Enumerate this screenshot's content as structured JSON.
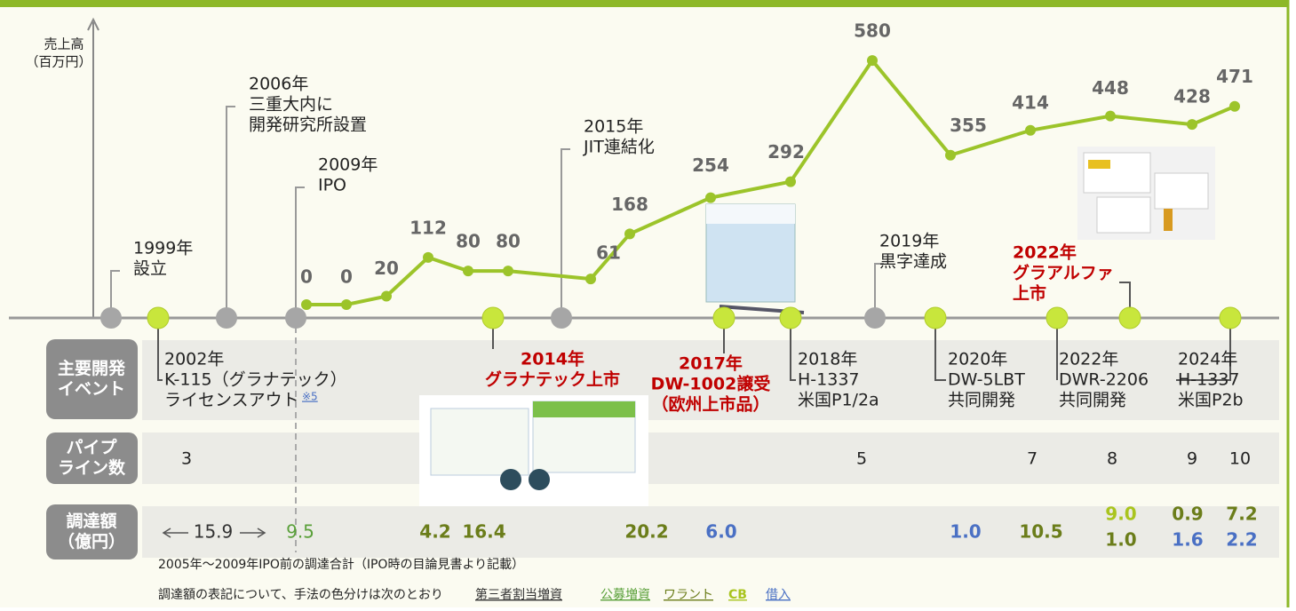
{
  "axis_label": [
    "売上高",
    "（百万円）"
  ],
  "revenue": {
    "values": [
      0,
      0,
      20,
      112,
      80,
      80,
      61,
      168,
      254,
      292,
      580,
      355,
      414,
      448,
      428,
      471
    ],
    "color": "#9cc42a"
  },
  "corporate_events": [
    {
      "lines": [
        "1999年",
        "設立"
      ]
    },
    {
      "lines": [
        "2006年",
        "三重大内に",
        "開発研究所設置"
      ]
    },
    {
      "lines": [
        "2009年",
        "IPO"
      ]
    },
    {
      "lines": [
        "2015年",
        "JIT連結化"
      ]
    },
    {
      "lines": [
        "2019年",
        "黒字達成"
      ]
    }
  ],
  "row_labels": [
    [
      "主要開発",
      "イベント"
    ],
    [
      "パイプ",
      "ライン数"
    ],
    [
      "調達額",
      "（億円）"
    ]
  ],
  "dev_events": [
    {
      "lines": [
        "2002年",
        "K-115（グラナテック）",
        "ライセンスアウト"
      ],
      "note": "※5"
    },
    {
      "lines": [
        "2014年",
        "グラナテック上市"
      ],
      "highlight": true
    },
    {
      "lines": [
        "2017年",
        "DW-1002譲受",
        "（欧州上市品）"
      ],
      "highlight": true
    },
    {
      "lines": [
        "2018年",
        "H-1337",
        "米国P1/2a"
      ]
    },
    {
      "lines": [
        "2020年",
        "DW-5LBT",
        "共同開発"
      ]
    },
    {
      "lines": [
        "2022年",
        "グラアルファ",
        "上市"
      ],
      "highlight": true
    },
    {
      "lines": [
        "2022年",
        "DWR-2206",
        "共同開発"
      ]
    },
    {
      "lines": [
        "2024年",
        "H-1337",
        "米国P2b"
      ]
    }
  ],
  "pipeline_counts": [
    3,
    5,
    7,
    8,
    9,
    10
  ],
  "funding": [
    {
      "text": "15.9",
      "method": 0
    },
    {
      "text": "9.5",
      "method": 1
    },
    {
      "text": "4.2",
      "method": 2
    },
    {
      "text": "16.4",
      "method": 2
    },
    {
      "text": "20.2",
      "method": 2
    },
    {
      "text": "6.0",
      "method": 4
    },
    {
      "text": "1.0",
      "method": 4
    },
    {
      "text": "10.5",
      "method": 2
    },
    {
      "text": "9.0",
      "method": 3
    },
    {
      "text": "1.0",
      "method": 2
    },
    {
      "text": "0.9",
      "method": 2
    },
    {
      "text": "1.6",
      "method": 4
    },
    {
      "text": "7.2",
      "method": 2
    },
    {
      "text": "2.2",
      "method": 4
    }
  ],
  "footnote": "2005年～2009年IPO前の調達合計（IPO時の目論見書より記載）",
  "legend_intro": "調達額の表記について、手法の色分けは次のとおり",
  "methods": [
    {
      "name": "第三者割当増資",
      "color": "#333333"
    },
    {
      "name": "公募増資",
      "color": "#5aa03a"
    },
    {
      "name": "ワラント",
      "color": "#6b7d1a"
    },
    {
      "name": "CB",
      "color": "#a9c41e"
    },
    {
      "name": "借入",
      "color": "#4a70c4"
    }
  ]
}
